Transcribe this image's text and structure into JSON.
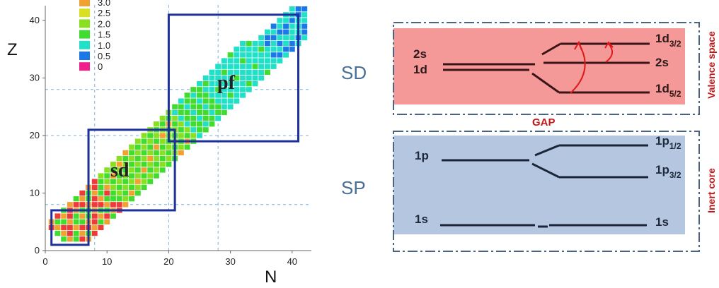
{
  "chart": {
    "xlabel": "N",
    "ylabel": "Z",
    "xlim": [
      0,
      43
    ],
    "ylim": [
      0,
      43
    ],
    "xticks": [
      0,
      10,
      20,
      30,
      40
    ],
    "yticks": [
      0,
      10,
      20,
      30,
      40
    ],
    "legend": {
      "labels": [
        "3.0",
        "2.5",
        "2.0",
        "1.5",
        "1.0",
        "0.5",
        "0"
      ],
      "colors": [
        "#f2a030",
        "#d8e020",
        "#88e020",
        "#40dc30",
        "#20e0c8",
        "#1a78e8",
        "#f0208a"
      ]
    },
    "regions": [
      {
        "label": "",
        "n": [
          1,
          7
        ],
        "z": [
          1,
          7
        ]
      },
      {
        "label": "sd",
        "n": [
          7,
          21
        ],
        "z": [
          7,
          21
        ]
      },
      {
        "label": "pf",
        "n": [
          20,
          41
        ],
        "z": [
          19,
          41
        ]
      }
    ],
    "magic_lines": [
      8,
      20,
      28
    ]
  },
  "diagram": {
    "sd_label": "SD",
    "sp_label": "SP",
    "gap_label": "GAP",
    "valence_label": "Valence space",
    "core_label": "Inert core",
    "sd_left": [
      {
        "text": "2s"
      },
      {
        "text": "1d"
      }
    ],
    "sd_right": [
      {
        "main": "1d",
        "sub": "3/2"
      },
      {
        "main": "2s",
        "sub": ""
      },
      {
        "main": "1d",
        "sub": "5/2"
      }
    ],
    "sp_left": [
      {
        "text": "1p"
      },
      {
        "text": "1s"
      }
    ],
    "sp_right": [
      {
        "main": "1p",
        "sub": "1/2"
      },
      {
        "main": "1p",
        "sub": "3/2"
      },
      {
        "main": "1s",
        "sub": ""
      }
    ]
  }
}
